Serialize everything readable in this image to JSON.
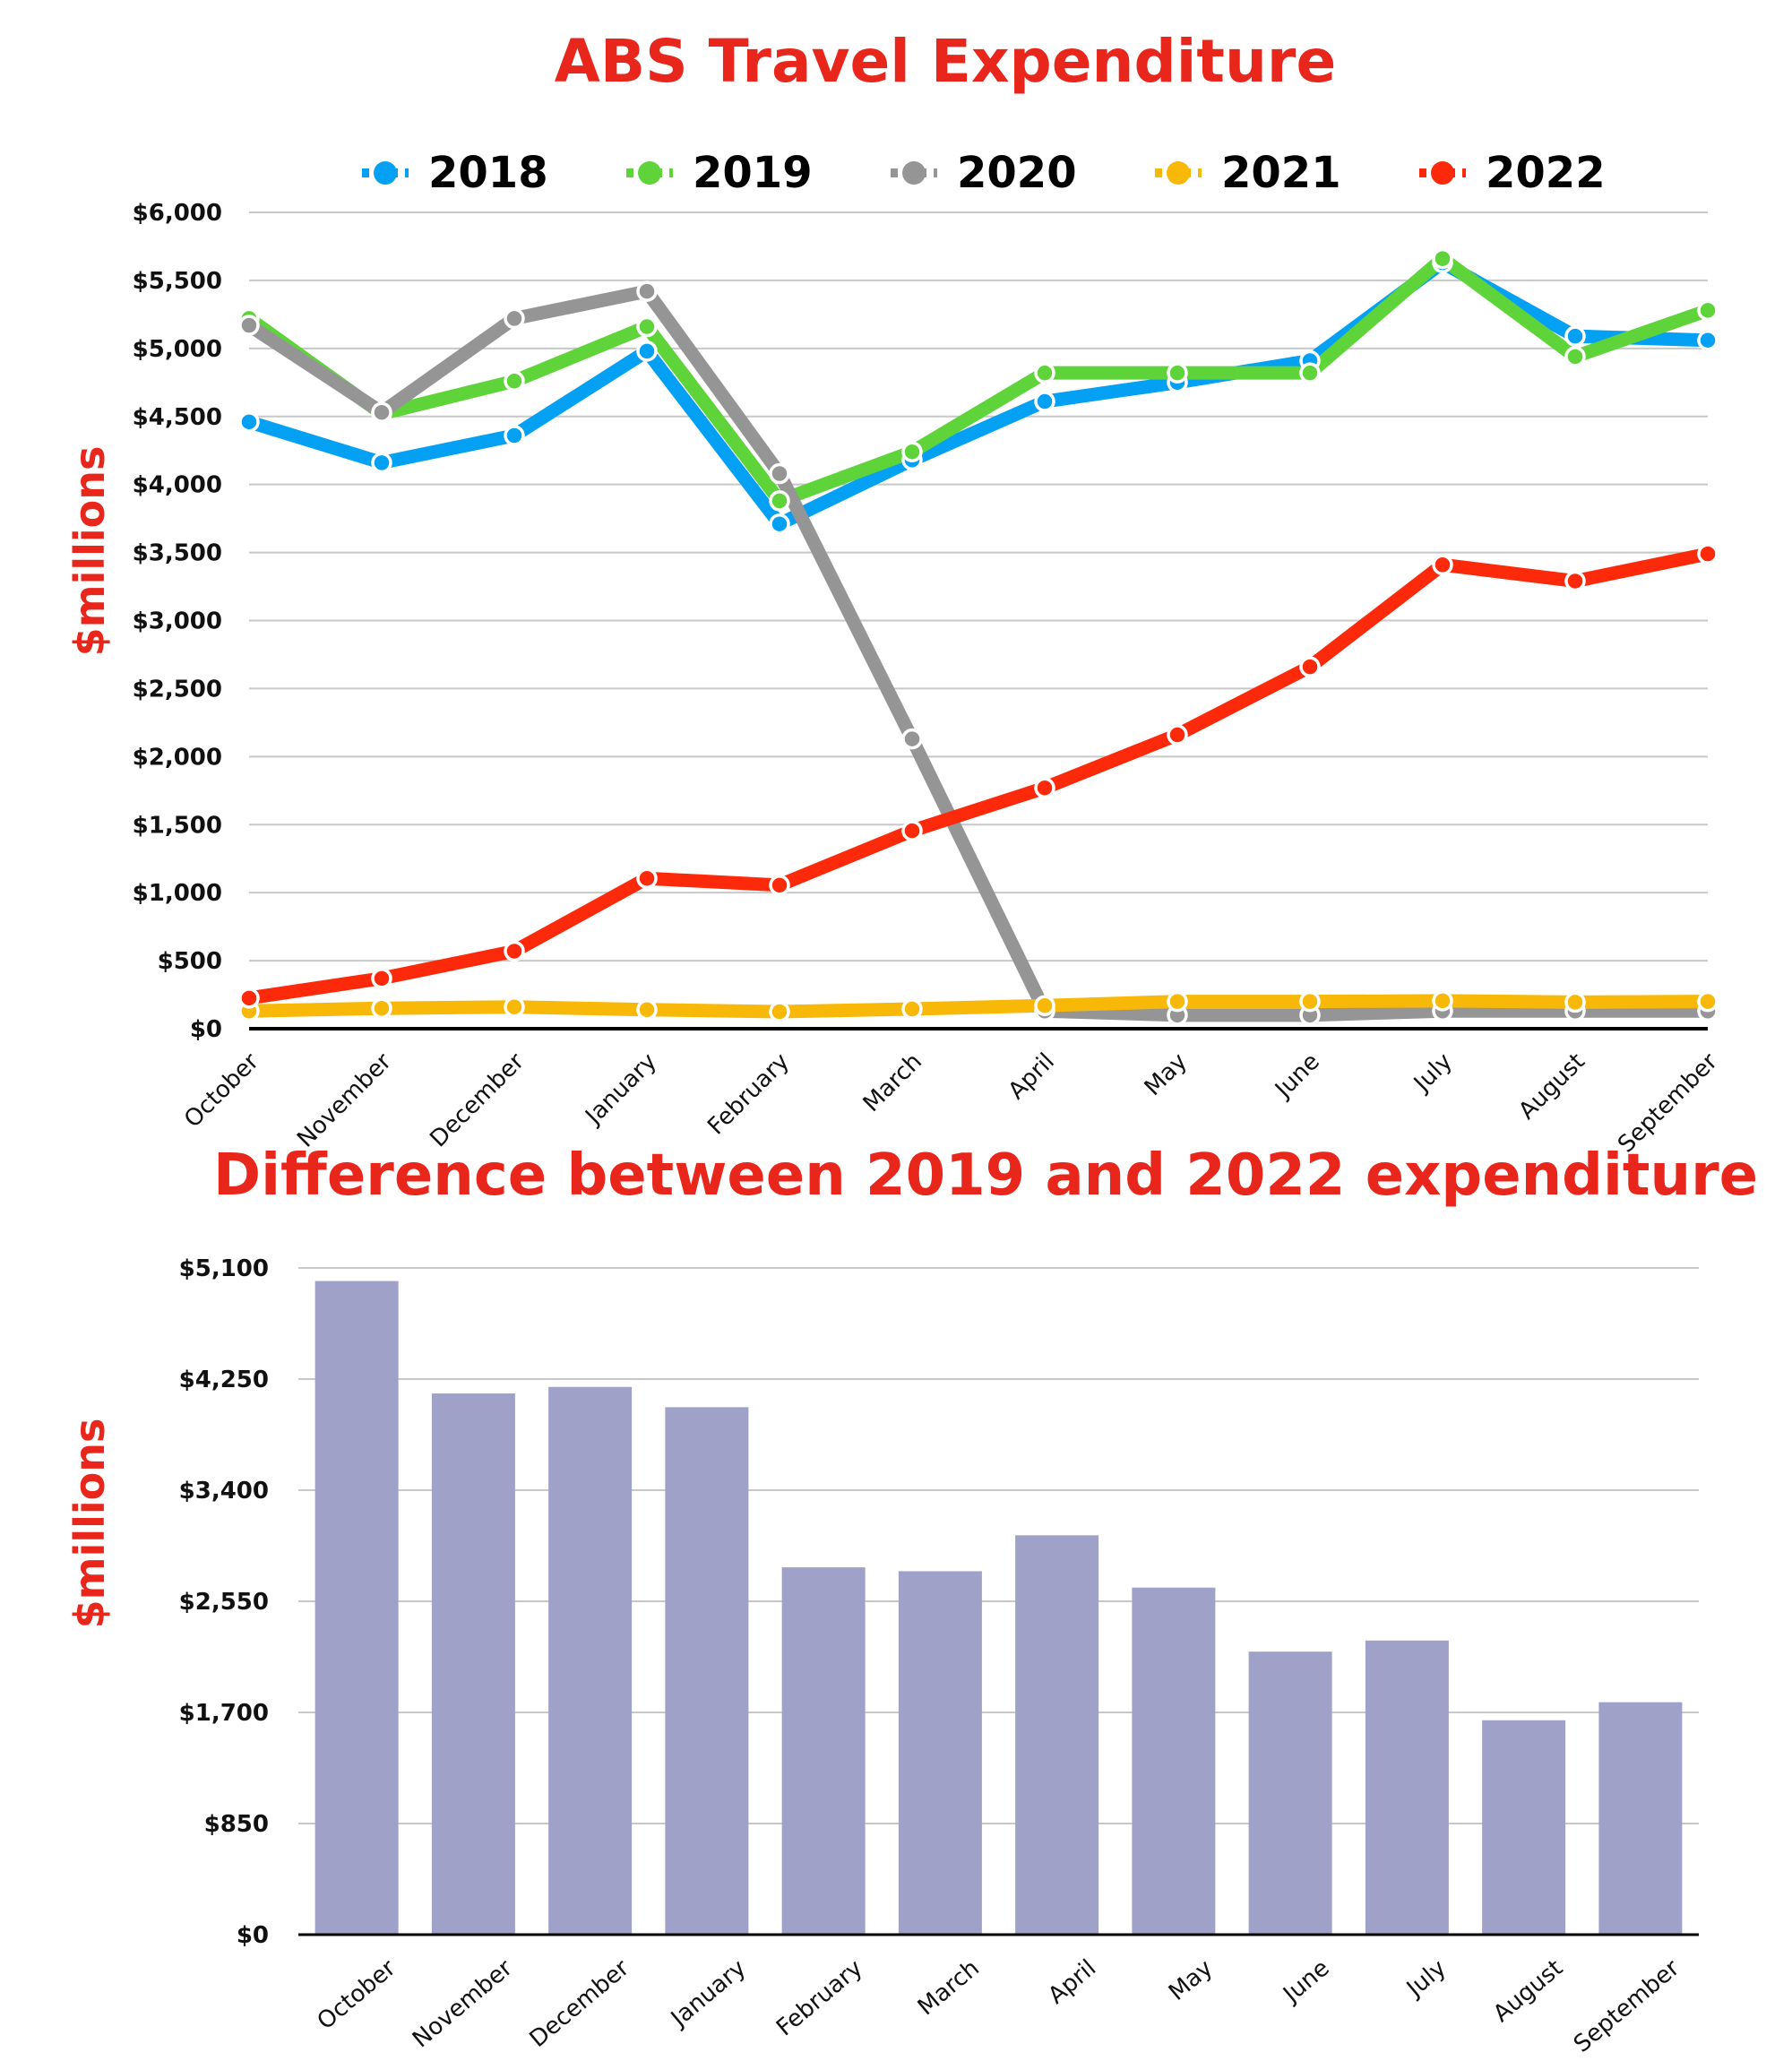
{
  "chart_data": [
    {
      "type": "line",
      "title": "ABS Travel Expenditure",
      "xlabel": "",
      "ylabel": "$millions",
      "categories": [
        "October",
        "November",
        "December",
        "January",
        "February",
        "March",
        "April",
        "May",
        "June",
        "July",
        "August",
        "September"
      ],
      "ylim": [
        0,
        6000
      ],
      "yticks": [
        0,
        500,
        1000,
        1500,
        2000,
        2500,
        3000,
        3500,
        4000,
        4500,
        5000,
        5500,
        6000
      ],
      "ytick_labels": [
        "$0",
        "$500",
        "$1,000",
        "$1,500",
        "$2,000",
        "$2,500",
        "$3,000",
        "$3,500",
        "$4,000",
        "$4,500",
        "$5,000",
        "$5,500",
        "$6,000"
      ],
      "grid": true,
      "legend": "top-center",
      "series": [
        {
          "name": "2018",
          "color": "#03a0f3",
          "values": [
            4460,
            4160,
            4360,
            4980,
            3710,
            4180,
            4610,
            4750,
            4910,
            5630,
            5090,
            5060
          ]
        },
        {
          "name": "2019",
          "color": "#5fd43a",
          "values": [
            5220,
            4520,
            4760,
            5160,
            3880,
            4240,
            4820,
            4820,
            4820,
            5660,
            4940,
            5280
          ]
        },
        {
          "name": "2020",
          "color": "#959595",
          "values": [
            5170,
            4530,
            5220,
            5420,
            4080,
            2130,
            130,
            100,
            100,
            130,
            130,
            130
          ]
        },
        {
          "name": "2021",
          "color": "#f8b808",
          "values": [
            130,
            150,
            160,
            140,
            125,
            145,
            170,
            200,
            200,
            205,
            195,
            200
          ]
        },
        {
          "name": "2022",
          "color": "#fc2a0a",
          "values": [
            225,
            370,
            570,
            1105,
            1055,
            1455,
            1770,
            2160,
            2660,
            3410,
            3290,
            3490
          ]
        }
      ]
    },
    {
      "type": "bar",
      "title": "Difference between 2019 and 2022 expenditure",
      "xlabel": "",
      "ylabel": "$millions",
      "categories": [
        "October",
        "November",
        "December",
        "January",
        "February",
        "March",
        "April",
        "May",
        "June",
        "July",
        "August",
        "September"
      ],
      "values": [
        5000,
        4140,
        4190,
        4035,
        2810,
        2780,
        3055,
        2655,
        2165,
        2250,
        1640,
        1778
      ],
      "color": "#a0a1c9",
      "ylim": [
        0,
        5100
      ],
      "yticks": [
        0,
        850,
        1700,
        2550,
        3400,
        4250,
        5100
      ],
      "ytick_labels": [
        "$0",
        "$850",
        "$1,700",
        "$2,550",
        "$3,400",
        "$4,250",
        "$5,100"
      ],
      "grid": true,
      "legend": "none"
    }
  ]
}
